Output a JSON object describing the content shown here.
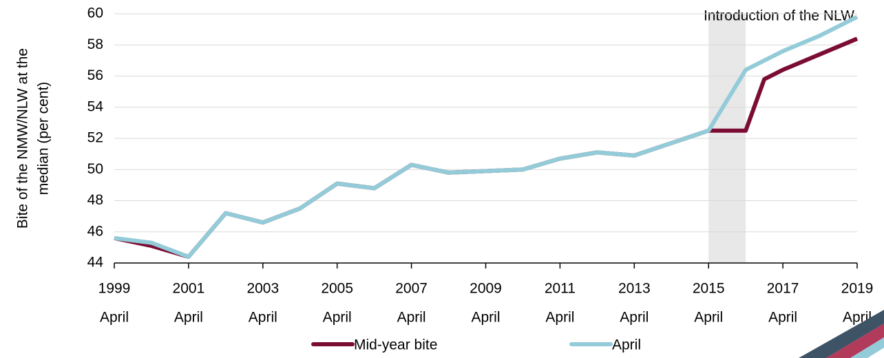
{
  "chart_data": {
    "type": "line",
    "y_label": [
      "Bite of the NMW/NLW at the",
      "median (per cent)"
    ],
    "annotation": "Introduction of the NLW",
    "shade": [
      2015,
      2016
    ],
    "series": [
      {
        "name": "Mid-year bite",
        "color": "#7b0c34",
        "x": [
          1999,
          2000,
          2001,
          2002,
          2003,
          2004,
          2005,
          2006,
          2007,
          2008,
          2009,
          2010,
          2011,
          2012,
          2013,
          2014,
          2015,
          2016,
          2016.5,
          2017,
          2018,
          2019
        ],
        "values": [
          45.6,
          45.1,
          44.4,
          47.2,
          46.6,
          47.5,
          49.1,
          48.8,
          50.3,
          49.8,
          49.9,
          50.0,
          50.7,
          51.1,
          50.9,
          51.7,
          52.5,
          52.5,
          55.8,
          56.4,
          57.4,
          58.4
        ]
      },
      {
        "name": "April",
        "color": "#93cbd8",
        "x": [
          1999,
          2000,
          2001,
          2002,
          2003,
          2004,
          2005,
          2006,
          2007,
          2008,
          2009,
          2010,
          2011,
          2012,
          2013,
          2014,
          2015,
          2016,
          2017,
          2018,
          2019
        ],
        "values": [
          45.6,
          45.3,
          44.4,
          47.2,
          46.6,
          47.5,
          49.1,
          48.8,
          50.3,
          49.8,
          49.9,
          50.0,
          50.7,
          51.1,
          50.9,
          51.7,
          52.5,
          56.4,
          57.6,
          58.6,
          59.8
        ]
      }
    ],
    "xlim": [
      1999,
      2019
    ],
    "xticks": [
      {
        "value": 1999,
        "label": [
          "1999",
          "April"
        ]
      },
      {
        "value": 2001,
        "label": [
          "2001",
          "April"
        ]
      },
      {
        "value": 2003,
        "label": [
          "2003",
          "April"
        ]
      },
      {
        "value": 2005,
        "label": [
          "2005",
          "April"
        ]
      },
      {
        "value": 2007,
        "label": [
          "2007",
          "April"
        ]
      },
      {
        "value": 2009,
        "label": [
          "2009",
          "April"
        ]
      },
      {
        "value": 2011,
        "label": [
          "2011",
          "April"
        ]
      },
      {
        "value": 2013,
        "label": [
          "2013",
          "April"
        ]
      },
      {
        "value": 2015,
        "label": [
          "2015",
          "April"
        ]
      },
      {
        "value": 2017,
        "label": [
          "2017",
          "April"
        ]
      },
      {
        "value": 2019,
        "label": [
          "2019",
          "April"
        ]
      }
    ],
    "ylim": [
      44,
      60
    ],
    "yticks": [
      44,
      46,
      48,
      50,
      52,
      54,
      56,
      58,
      60
    ],
    "grid": true
  }
}
